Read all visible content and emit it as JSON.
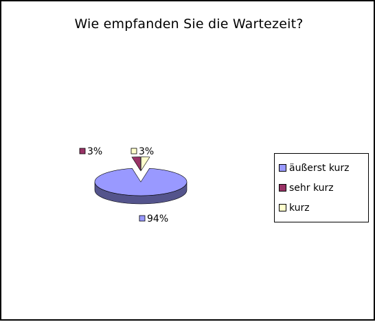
{
  "chart_data": {
    "type": "pie",
    "title": "Wie empfanden Sie die Wartezeit?",
    "categories": [
      "äußerst kurz",
      "sehr kurz",
      "kurz"
    ],
    "values": [
      94,
      3,
      3
    ],
    "value_labels": [
      "94%",
      "3%",
      "3%"
    ],
    "colors": [
      "#9999ff",
      "#993366",
      "#ffffcc"
    ],
    "style": "3d-exploded-pie",
    "legend_position": "right"
  }
}
